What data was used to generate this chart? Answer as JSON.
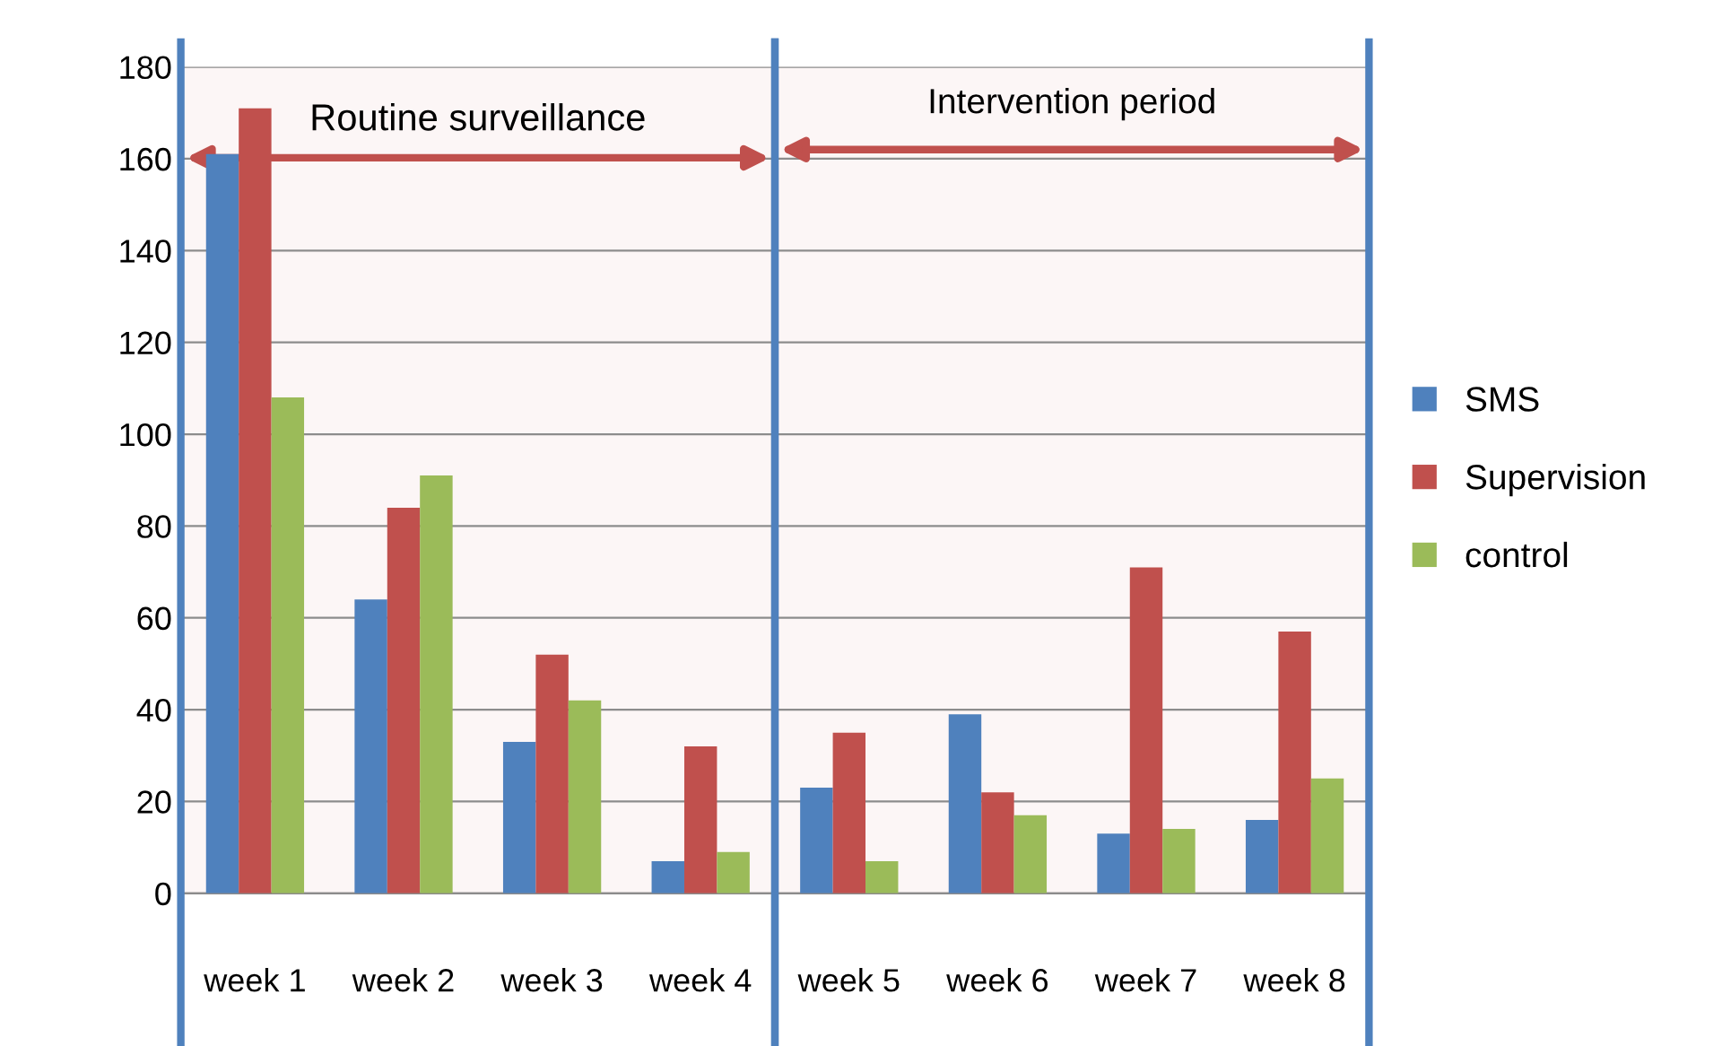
{
  "chart_data": {
    "type": "bar",
    "categories": [
      "week 1",
      "week 2",
      "week 3",
      "week 4",
      "week 5",
      "week 6",
      "week 7",
      "week 8"
    ],
    "series": [
      {
        "name": "SMS",
        "color": "#4f81bd",
        "values": [
          161,
          64,
          33,
          7,
          23,
          39,
          13,
          16
        ]
      },
      {
        "name": "Supervision",
        "color": "#c0504d",
        "values": [
          171,
          84,
          52,
          32,
          35,
          22,
          71,
          57
        ]
      },
      {
        "name": "control",
        "color": "#9bbb59",
        "values": [
          108,
          91,
          42,
          9,
          7,
          17,
          14,
          25
        ]
      }
    ],
    "ylim": [
      0,
      180
    ],
    "yticks": [
      0,
      20,
      40,
      60,
      80,
      100,
      120,
      140,
      160,
      180
    ],
    "grid": "y",
    "legend": "right",
    "bands": [
      {
        "axis": "x",
        "from": "week 1",
        "to": "week 4",
        "label": "Routine surveillance",
        "color": "#c0504d"
      },
      {
        "axis": "x",
        "from": "week 5",
        "to": "week 8",
        "label": "Intervention period",
        "color": "#c0504d"
      }
    ]
  }
}
